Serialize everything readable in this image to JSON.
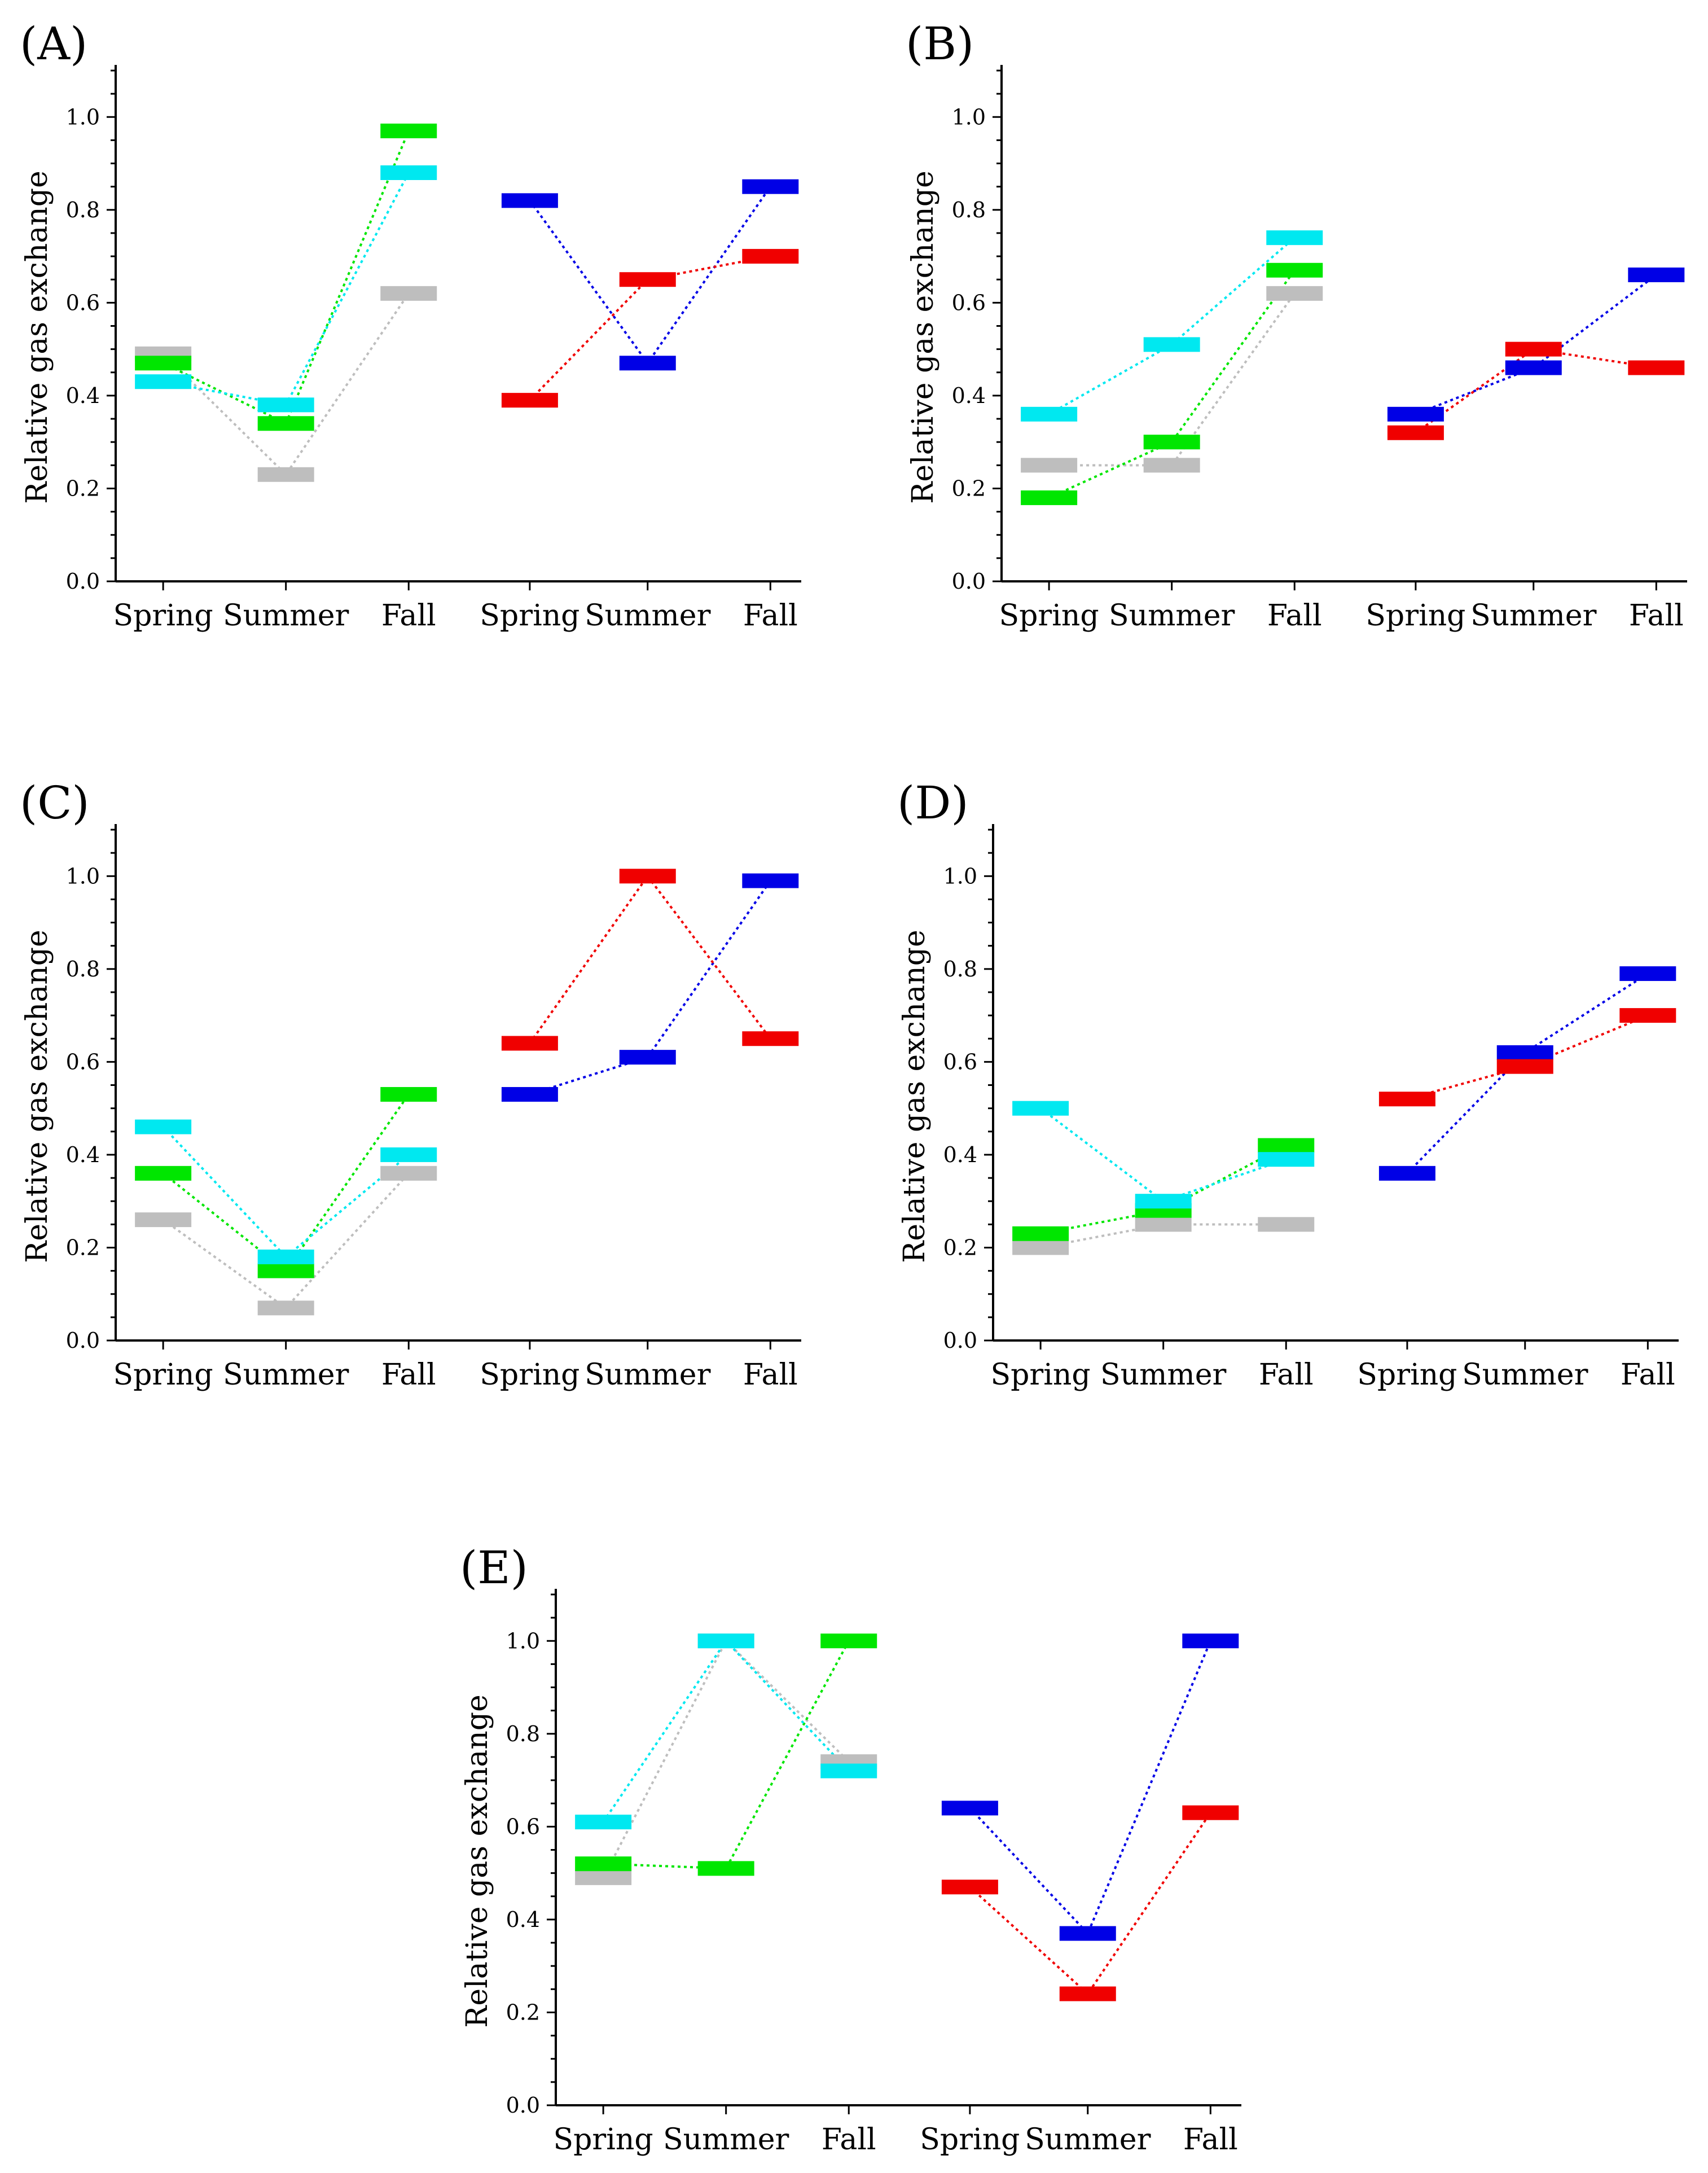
{
  "colors": {
    "gray": "#bebebe",
    "green": "#00e600",
    "cyan": "#00e8f0",
    "blue": "#0000e6",
    "red": "#f00000"
  },
  "chart_data": [
    {
      "type": "line",
      "panel_label": "(A)",
      "ylabel": "Relative gas exchange",
      "ylim": [
        0,
        1.1
      ],
      "yticks": [
        "0.0",
        "0.2",
        "0.4",
        "0.6",
        "0.8",
        "1.0"
      ],
      "categories": [
        "Spring",
        "Summer",
        "Fall",
        "Spring",
        "Summer",
        "Fall"
      ],
      "series": [
        {
          "color": "gray",
          "x": [
            0,
            1,
            2
          ],
          "values": [
            0.49,
            0.23,
            0.62
          ]
        },
        {
          "color": "green",
          "x": [
            0,
            1,
            2
          ],
          "values": [
            0.47,
            0.34,
            0.97
          ]
        },
        {
          "color": "cyan",
          "x": [
            0,
            1,
            2
          ],
          "values": [
            0.43,
            0.38,
            0.88
          ]
        },
        {
          "color": "blue",
          "x": [
            3,
            4,
            5
          ],
          "values": [
            0.82,
            0.47,
            0.85
          ]
        },
        {
          "color": "red",
          "x": [
            3,
            4,
            5
          ],
          "values": [
            0.39,
            0.65,
            0.7
          ]
        }
      ]
    },
    {
      "type": "line",
      "panel_label": "(B)",
      "ylabel": "Relative gas exchange",
      "ylim": [
        0,
        1.1
      ],
      "yticks": [
        "0.0",
        "0.2",
        "0.4",
        "0.6",
        "0.8",
        "1.0"
      ],
      "categories": [
        "Spring",
        "Summer",
        "Fall",
        "Spring",
        "Summer",
        "Fall"
      ],
      "series": [
        {
          "color": "gray",
          "x": [
            0,
            1,
            2
          ],
          "values": [
            0.25,
            0.25,
            0.62
          ]
        },
        {
          "color": "green",
          "x": [
            0,
            1,
            2
          ],
          "values": [
            0.18,
            0.3,
            0.67
          ]
        },
        {
          "color": "cyan",
          "x": [
            0,
            1,
            2
          ],
          "values": [
            0.36,
            0.51,
            0.74
          ]
        },
        {
          "color": "blue",
          "x": [
            3,
            4,
            5
          ],
          "values": [
            0.36,
            0.46,
            0.66
          ]
        },
        {
          "color": "red",
          "x": [
            3,
            4,
            5
          ],
          "values": [
            0.32,
            0.5,
            0.46
          ]
        }
      ]
    },
    {
      "type": "line",
      "panel_label": "(C)",
      "ylabel": "Relative gas exchange",
      "ylim": [
        0,
        1.1
      ],
      "yticks": [
        "0.0",
        "0.2",
        "0.4",
        "0.6",
        "0.8",
        "1.0"
      ],
      "categories": [
        "Spring",
        "Summer",
        "Fall",
        "Spring",
        "Summer",
        "Fall"
      ],
      "series": [
        {
          "color": "gray",
          "x": [
            0,
            1,
            2
          ],
          "values": [
            0.26,
            0.07,
            0.36
          ]
        },
        {
          "color": "green",
          "x": [
            0,
            1,
            2
          ],
          "values": [
            0.36,
            0.15,
            0.53
          ]
        },
        {
          "color": "cyan",
          "x": [
            0,
            1,
            2
          ],
          "values": [
            0.46,
            0.18,
            0.4
          ]
        },
        {
          "color": "blue",
          "x": [
            3,
            4,
            5
          ],
          "values": [
            0.53,
            0.61,
            0.99
          ]
        },
        {
          "color": "red",
          "x": [
            3,
            4,
            5
          ],
          "values": [
            0.64,
            1.0,
            0.65
          ]
        }
      ]
    },
    {
      "type": "line",
      "panel_label": "(D)",
      "ylabel": "Relative gas exchange",
      "ylim": [
        0,
        1.1
      ],
      "yticks": [
        "0.0",
        "0.2",
        "0.4",
        "0.6",
        "0.8",
        "1.0"
      ],
      "categories": [
        "Spring",
        "Summer",
        "Fall",
        "Spring",
        "Summer",
        "Fall"
      ],
      "series": [
        {
          "color": "gray",
          "x": [
            0,
            1,
            2
          ],
          "values": [
            0.2,
            0.25,
            0.25
          ]
        },
        {
          "color": "green",
          "x": [
            0,
            1,
            2
          ],
          "values": [
            0.23,
            0.28,
            0.42
          ]
        },
        {
          "color": "cyan",
          "x": [
            0,
            1,
            2
          ],
          "values": [
            0.5,
            0.3,
            0.39
          ]
        },
        {
          "color": "blue",
          "x": [
            3,
            4,
            5
          ],
          "values": [
            0.36,
            0.62,
            0.79
          ]
        },
        {
          "color": "red",
          "x": [
            3,
            4,
            5
          ],
          "values": [
            0.52,
            0.59,
            0.7
          ]
        }
      ]
    },
    {
      "type": "line",
      "panel_label": "(E)",
      "ylabel": "Relative gas exchange",
      "ylim": [
        0,
        1.1
      ],
      "yticks": [
        "0.0",
        "0.2",
        "0.4",
        "0.6",
        "0.8",
        "1.0"
      ],
      "categories": [
        "Spring",
        "Summer",
        "Fall",
        "Spring",
        "Summer",
        "Fall"
      ],
      "series": [
        {
          "color": "gray",
          "x": [
            0,
            1,
            2
          ],
          "values": [
            0.49,
            1.0,
            0.74
          ]
        },
        {
          "color": "green",
          "x": [
            0,
            1,
            2
          ],
          "values": [
            0.52,
            0.51,
            1.0
          ]
        },
        {
          "color": "cyan",
          "x": [
            0,
            1,
            2
          ],
          "values": [
            0.61,
            1.0,
            0.72
          ]
        },
        {
          "color": "blue",
          "x": [
            3,
            4,
            5
          ],
          "values": [
            0.64,
            0.37,
            1.0
          ]
        },
        {
          "color": "red",
          "x": [
            3,
            4,
            5
          ],
          "values": [
            0.47,
            0.24,
            0.63
          ]
        }
      ]
    }
  ]
}
